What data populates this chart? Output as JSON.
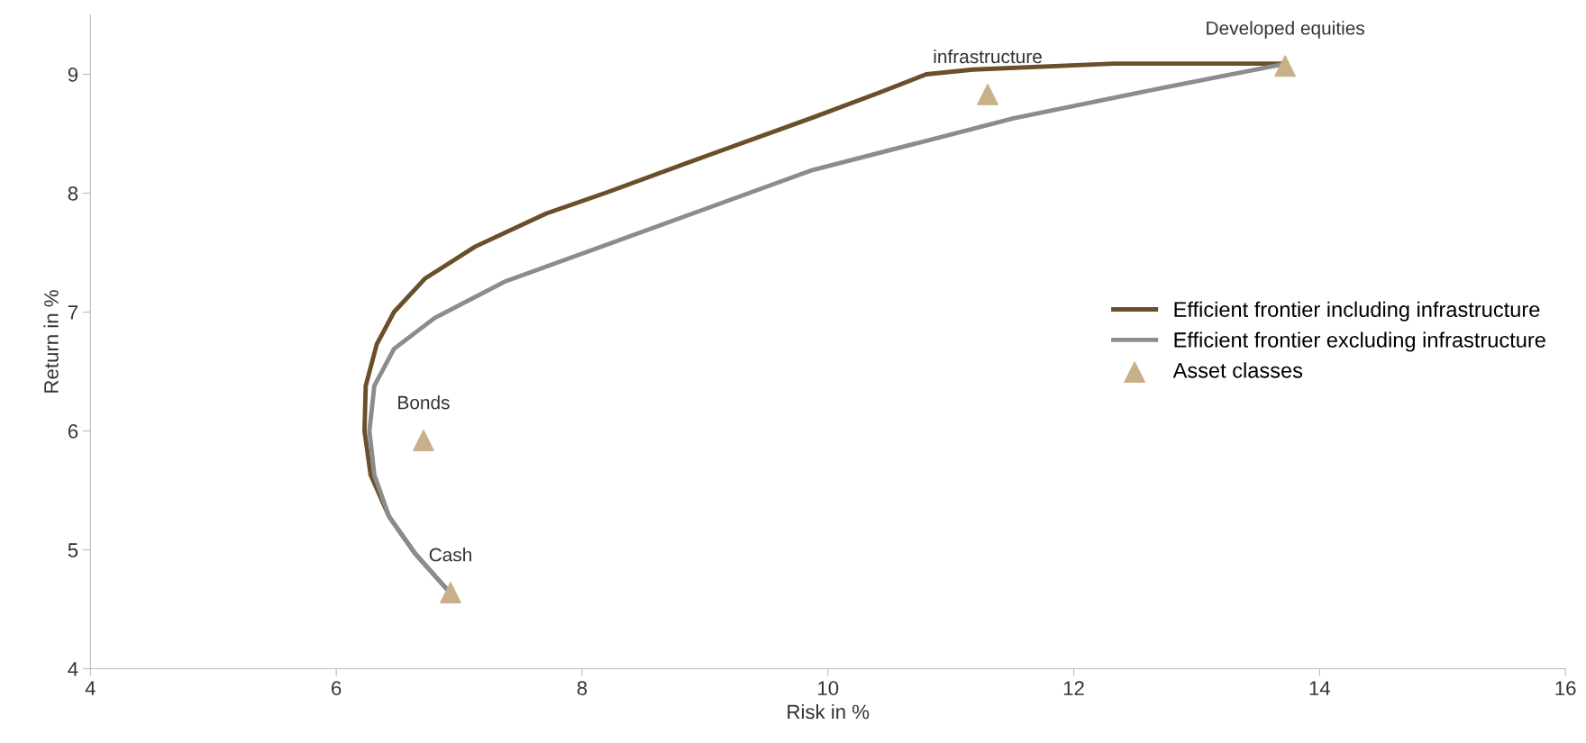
{
  "chart_data": {
    "type": "line",
    "xlabel": "Risk in %",
    "ylabel": "Return in %",
    "xlim": [
      4,
      16
    ],
    "xticks": [
      4,
      6,
      8,
      10,
      12,
      14,
      16
    ],
    "ylim": [
      4,
      9.5
    ],
    "yticks": [
      4,
      5,
      6,
      7,
      8,
      9
    ],
    "grid": false,
    "legend": "right",
    "marker": "none",
    "line_style": "solid",
    "series": [
      {
        "name": "Efficient frontier including infrastructure",
        "color": "#6b4f2a",
        "x": [
          6.89,
          6.64,
          6.43,
          6.28,
          6.23,
          6.24,
          6.33,
          6.47,
          6.72,
          7.13,
          7.71,
          8.21,
          9.03,
          9.86,
          10.43,
          10.8,
          11.18,
          12.33,
          13.73
        ],
        "values": [
          4.68,
          4.97,
          5.28,
          5.63,
          6.0,
          6.38,
          6.73,
          7.0,
          7.28,
          7.55,
          7.83,
          8.01,
          8.32,
          8.63,
          8.85,
          9.0,
          9.04,
          9.09,
          9.09
        ]
      },
      {
        "name": "Efficient frontier excluding infrastructure",
        "color": "#8c8c8c",
        "x": [
          6.89,
          6.64,
          6.43,
          6.31,
          6.27,
          6.31,
          6.47,
          6.8,
          7.38,
          8.21,
          9.86,
          11.51,
          12.74,
          13.73
        ],
        "values": [
          4.68,
          4.97,
          5.28,
          5.63,
          6.0,
          6.38,
          6.69,
          6.95,
          7.26,
          7.57,
          8.19,
          8.63,
          8.89,
          9.09
        ]
      },
      {
        "name": "Asset classes",
        "type": "scatter",
        "marker": "triangle",
        "color": "#c8b08a",
        "x": [
          6.93,
          6.71,
          11.3,
          13.72
        ],
        "values": [
          4.64,
          5.92,
          8.83,
          9.07
        ]
      }
    ],
    "annotations": [
      {
        "text": "Cash",
        "x": 6.93,
        "y": 4.64
      },
      {
        "text": "Bonds",
        "x": 6.71,
        "y": 5.92
      },
      {
        "text": "infrastructure",
        "x": 11.3,
        "y": 8.83
      },
      {
        "text": "Developed equities",
        "x": 13.72,
        "y": 9.07
      }
    ]
  }
}
